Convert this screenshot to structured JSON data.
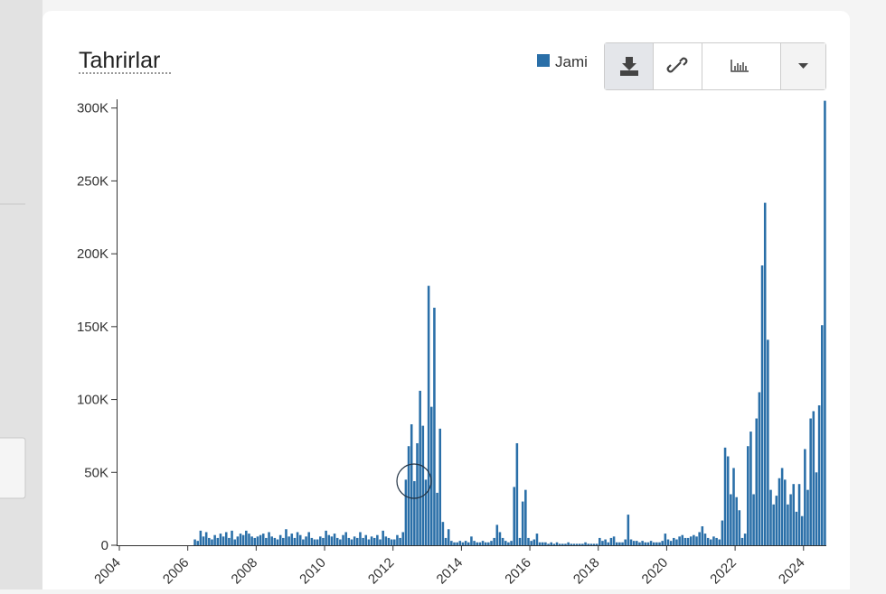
{
  "chart_data": {
    "type": "bar",
    "title": "Tahrirlar",
    "x": [
      "2006-01",
      "2006-02",
      "2006-03",
      "2006-04",
      "2006-05",
      "2006-06",
      "2006-07",
      "2006-08",
      "2006-09",
      "2006-10",
      "2006-11",
      "2006-12",
      "2007-01",
      "2007-02",
      "2007-03",
      "2007-04",
      "2007-05",
      "2007-06",
      "2007-07",
      "2007-08",
      "2007-09",
      "2007-10",
      "2007-11",
      "2007-12",
      "2008-01",
      "2008-02",
      "2008-03",
      "2008-04",
      "2008-05",
      "2008-06",
      "2008-07",
      "2008-08",
      "2008-09",
      "2008-10",
      "2008-11",
      "2008-12",
      "2009-01",
      "2009-02",
      "2009-03",
      "2009-04",
      "2009-05",
      "2009-06",
      "2009-07",
      "2009-08",
      "2009-09",
      "2009-10",
      "2009-11",
      "2009-12",
      "2010-01",
      "2010-02",
      "2010-03",
      "2010-04",
      "2010-05",
      "2010-06",
      "2010-07",
      "2010-08",
      "2010-09",
      "2010-10",
      "2010-11",
      "2010-12",
      "2011-01",
      "2011-02",
      "2011-03",
      "2011-04",
      "2011-05",
      "2011-06",
      "2011-07",
      "2011-08",
      "2011-09",
      "2011-10",
      "2011-11",
      "2011-12",
      "2012-01",
      "2012-02",
      "2012-03",
      "2012-04",
      "2012-05",
      "2012-06",
      "2012-07",
      "2012-08",
      "2012-09",
      "2012-10",
      "2012-11",
      "2012-12",
      "2013-01",
      "2013-02",
      "2013-03",
      "2013-04",
      "2013-05",
      "2013-06",
      "2013-07",
      "2013-08",
      "2013-09",
      "2013-10",
      "2013-11",
      "2013-12",
      "2014-01",
      "2014-02",
      "2014-03",
      "2014-04",
      "2014-05",
      "2014-06",
      "2014-07",
      "2014-08",
      "2014-09",
      "2014-10",
      "2014-11",
      "2014-12",
      "2015-01",
      "2015-02",
      "2015-03",
      "2015-04",
      "2015-05",
      "2015-06",
      "2015-07",
      "2015-08",
      "2015-09",
      "2015-10",
      "2015-11",
      "2015-12",
      "2016-01",
      "2016-02",
      "2016-03",
      "2016-04",
      "2016-05",
      "2016-06",
      "2016-07",
      "2016-08",
      "2016-09",
      "2016-10",
      "2016-11",
      "2016-12",
      "2017-01",
      "2017-02",
      "2017-03",
      "2017-04",
      "2017-05",
      "2017-06",
      "2017-07",
      "2017-08",
      "2017-09",
      "2017-10",
      "2017-11",
      "2017-12",
      "2018-01",
      "2018-02",
      "2018-03",
      "2018-04",
      "2018-05",
      "2018-06",
      "2018-07",
      "2018-08",
      "2018-09",
      "2018-10",
      "2018-11",
      "2018-12",
      "2019-01",
      "2019-02",
      "2019-03",
      "2019-04",
      "2019-05",
      "2019-06",
      "2019-07",
      "2019-08",
      "2019-09",
      "2019-10",
      "2019-11",
      "2019-12",
      "2020-01",
      "2020-02",
      "2020-03",
      "2020-04",
      "2020-05",
      "2020-06",
      "2020-07",
      "2020-08",
      "2020-09",
      "2020-10",
      "2020-11",
      "2020-12",
      "2021-01",
      "2021-02",
      "2021-03",
      "2021-04",
      "2021-05",
      "2021-06",
      "2021-07",
      "2021-08",
      "2021-09",
      "2021-10",
      "2021-11",
      "2021-12",
      "2022-01",
      "2022-02",
      "2022-03",
      "2022-04",
      "2022-05",
      "2022-06",
      "2022-07",
      "2022-08",
      "2022-09",
      "2022-10",
      "2022-11",
      "2022-12",
      "2023-01",
      "2023-02",
      "2023-03",
      "2023-04",
      "2023-05",
      "2023-06",
      "2023-07",
      "2023-08",
      "2023-09",
      "2023-10",
      "2023-11",
      "2023-12",
      "2024-01",
      "2024-02",
      "2024-03",
      "2024-04",
      "2024-05",
      "2024-06",
      "2024-07",
      "2024-08"
    ],
    "series": [
      {
        "name": "Jami",
        "color": "#2a6fa8",
        "values": [
          0,
          0,
          4000,
          3000,
          10000,
          6000,
          9000,
          5000,
          4000,
          7000,
          5000,
          8000,
          6000,
          9000,
          5000,
          10000,
          4000,
          6000,
          8000,
          7000,
          10000,
          8000,
          6000,
          5000,
          6000,
          7000,
          8000,
          5000,
          9000,
          6000,
          5000,
          4000,
          7000,
          5000,
          11000,
          6000,
          8000,
          5000,
          9000,
          7000,
          4000,
          6000,
          9000,
          5000,
          4000,
          4000,
          6000,
          5000,
          10000,
          7000,
          6000,
          8000,
          5000,
          4000,
          7000,
          9000,
          5000,
          4000,
          6000,
          5000,
          9000,
          5000,
          7000,
          4000,
          6000,
          5000,
          7000,
          4000,
          10000,
          6000,
          5000,
          4000,
          4000,
          7000,
          5000,
          9000,
          45000,
          68000,
          83000,
          44000,
          70000,
          106000,
          82000,
          45000,
          178000,
          95000,
          163000,
          36000,
          80000,
          16000,
          5000,
          11000,
          3000,
          2000,
          2000,
          3000,
          2000,
          3000,
          2000,
          6000,
          3000,
          2000,
          2000,
          3000,
          2000,
          2000,
          3000,
          5000,
          14000,
          9000,
          5000,
          3000,
          2000,
          3000,
          40000,
          70000,
          5000,
          30000,
          38000,
          5000,
          3000,
          4000,
          8000,
          2000,
          2000,
          2000,
          1000,
          2000,
          1000,
          2000,
          1000,
          1000,
          1000,
          2000,
          1000,
          1000,
          1000,
          1000,
          1000,
          2000,
          1000,
          1000,
          1000,
          1000,
          5000,
          3000,
          4000,
          2000,
          5000,
          6000,
          2000,
          2000,
          2000,
          4000,
          21000,
          4000,
          3000,
          3000,
          2000,
          3000,
          2000,
          2000,
          3000,
          2000,
          2000,
          2000,
          3000,
          8000,
          4000,
          3000,
          5000,
          4000,
          6000,
          7000,
          5000,
          5000,
          6000,
          7000,
          6000,
          9000,
          13000,
          8000,
          5000,
          4000,
          6000,
          5000,
          4000,
          17000,
          67000,
          61000,
          35000,
          53000,
          33000,
          24000,
          5000,
          8000,
          68000,
          78000,
          35000,
          87000,
          105000,
          192000,
          235000,
          141000,
          38000,
          28000,
          34000,
          46000,
          53000,
          45000,
          28000,
          35000,
          42000,
          23000,
          42000,
          20000,
          66000,
          38000,
          87000,
          92000,
          50000,
          96000,
          151000,
          305000
        ]
      }
    ],
    "xlim": [
      "2004-01",
      "2024-09"
    ],
    "xticks": [
      "2004",
      "2006",
      "2008",
      "2010",
      "2012",
      "2014",
      "2016",
      "2018",
      "2020",
      "2022",
      "2024"
    ],
    "ylim": [
      0,
      306000
    ],
    "yticks": [
      0,
      {
        "value": 50000,
        "label": "50K"
      },
      {
        "value": 100000,
        "label": "100K"
      },
      {
        "value": 150000,
        "label": "150K"
      },
      {
        "value": 200000,
        "label": "200K"
      },
      {
        "value": 250000,
        "label": "250K"
      },
      {
        "value": 300000,
        "label": "300K"
      }
    ],
    "legend": "top-right"
  }
}
